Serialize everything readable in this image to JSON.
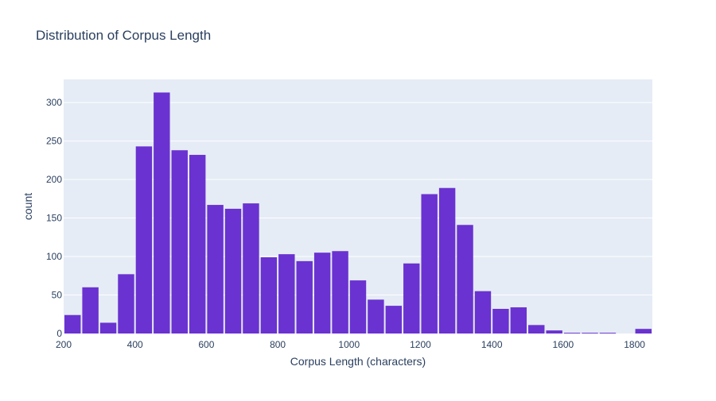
{
  "chart_data": {
    "type": "bar",
    "title": "Distribution of Corpus Length",
    "xlabel": "Corpus Length (characters)",
    "ylabel": "count",
    "xlim": [
      200,
      1850
    ],
    "ylim": [
      0,
      330
    ],
    "bin_width": 50,
    "x_ticks": [
      200,
      400,
      600,
      800,
      1000,
      1200,
      1400,
      1600,
      1800
    ],
    "y_ticks": [
      0,
      50,
      100,
      150,
      200,
      250,
      300
    ],
    "bins": [
      {
        "start": 200,
        "end": 250,
        "count": 24
      },
      {
        "start": 250,
        "end": 300,
        "count": 60
      },
      {
        "start": 300,
        "end": 350,
        "count": 14
      },
      {
        "start": 350,
        "end": 400,
        "count": 77
      },
      {
        "start": 400,
        "end": 450,
        "count": 243
      },
      {
        "start": 450,
        "end": 500,
        "count": 313
      },
      {
        "start": 500,
        "end": 550,
        "count": 238
      },
      {
        "start": 550,
        "end": 600,
        "count": 232
      },
      {
        "start": 600,
        "end": 650,
        "count": 167
      },
      {
        "start": 650,
        "end": 700,
        "count": 162
      },
      {
        "start": 700,
        "end": 750,
        "count": 169
      },
      {
        "start": 750,
        "end": 800,
        "count": 99
      },
      {
        "start": 800,
        "end": 850,
        "count": 103
      },
      {
        "start": 850,
        "end": 900,
        "count": 94
      },
      {
        "start": 900,
        "end": 950,
        "count": 105
      },
      {
        "start": 950,
        "end": 1000,
        "count": 107
      },
      {
        "start": 1000,
        "end": 1050,
        "count": 69
      },
      {
        "start": 1050,
        "end": 1100,
        "count": 44
      },
      {
        "start": 1100,
        "end": 1150,
        "count": 36
      },
      {
        "start": 1150,
        "end": 1200,
        "count": 91
      },
      {
        "start": 1200,
        "end": 1250,
        "count": 181
      },
      {
        "start": 1250,
        "end": 1300,
        "count": 189
      },
      {
        "start": 1300,
        "end": 1350,
        "count": 141
      },
      {
        "start": 1350,
        "end": 1400,
        "count": 55
      },
      {
        "start": 1400,
        "end": 1450,
        "count": 32
      },
      {
        "start": 1450,
        "end": 1500,
        "count": 34
      },
      {
        "start": 1500,
        "end": 1550,
        "count": 11
      },
      {
        "start": 1550,
        "end": 1600,
        "count": 4
      },
      {
        "start": 1600,
        "end": 1650,
        "count": 1
      },
      {
        "start": 1650,
        "end": 1700,
        "count": 1
      },
      {
        "start": 1700,
        "end": 1750,
        "count": 1
      },
      {
        "start": 1750,
        "end": 1800,
        "count": 0
      },
      {
        "start": 1800,
        "end": 1850,
        "count": 6
      }
    ],
    "grid": true,
    "colors": {
      "bar": "#6a32d0",
      "plot_background": "#e5ecf6",
      "gridline": "#ffffff",
      "text": "#2a3f5f"
    }
  }
}
